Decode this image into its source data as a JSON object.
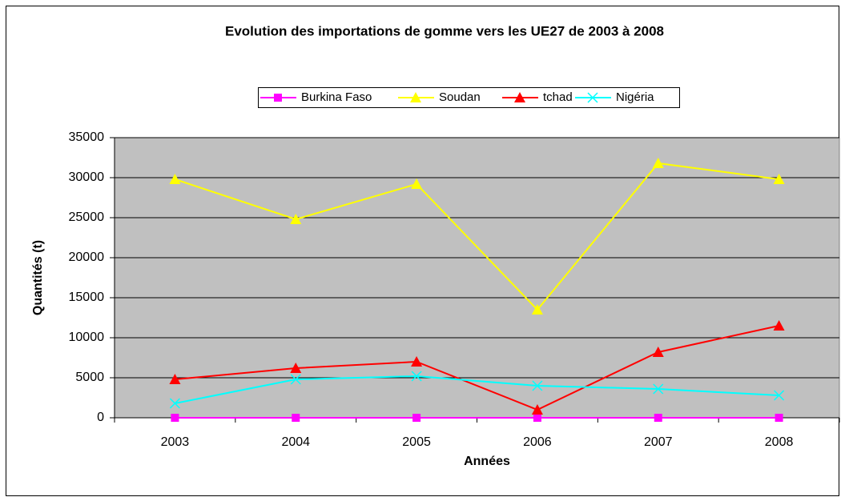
{
  "chart_data": {
    "type": "line",
    "title": "Evolution des importations de gomme vers les UE27 de 2003 à 2008",
    "x_label": "Années",
    "y_label": "Quantités (t)",
    "categories": [
      "2003",
      "2004",
      "2005",
      "2006",
      "2007",
      "2008"
    ],
    "series": [
      {
        "name": "Burkina Faso",
        "color": "#ff00ff",
        "marker": "square",
        "values": [
          0,
          0,
          0,
          0,
          0,
          0
        ]
      },
      {
        "name": "Soudan",
        "color": "#ffff00",
        "marker": "triangle",
        "values": [
          29800,
          24800,
          29200,
          13500,
          31800,
          29800
        ]
      },
      {
        "name": "tchad",
        "color": "#ff0000",
        "marker": "triangle",
        "values": [
          4800,
          6200,
          7000,
          1000,
          8200,
          11500
        ]
      },
      {
        "name": "Nigéria",
        "color": "#00ffff",
        "marker": "x",
        "values": [
          1800,
          4800,
          5200,
          4000,
          3600,
          2800
        ]
      }
    ],
    "ylim": [
      0,
      35000
    ],
    "yticks": [
      0,
      5000,
      10000,
      15000,
      20000,
      25000,
      30000,
      35000
    ],
    "grid": true,
    "legend": "top"
  }
}
